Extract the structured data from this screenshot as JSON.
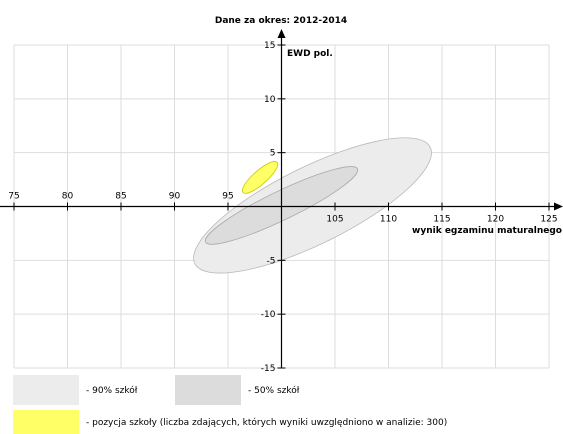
{
  "chart_data": {
    "type": "scatter",
    "title": "Dane za okres: 2012-2014",
    "xlabel": "wynik egzaminu maturalnego",
    "ylabel": "EWD pol.",
    "xlim": [
      75,
      125
    ],
    "ylim": [
      -15,
      15
    ],
    "x_ticks": [
      "75",
      "80",
      "85",
      "90",
      "95",
      "105",
      "110",
      "115",
      "120",
      "125"
    ],
    "y_ticks": [
      "15",
      "10",
      "5",
      "-5",
      "-10",
      "-15"
    ],
    "grid": true,
    "series": [
      {
        "name": "90% szkół",
        "shape": "ellipse",
        "center": [
          102.9,
          0.1
        ],
        "axis_tip_major": [
          113.9,
          5.5
        ],
        "axis_tip_minor": [
          101.5,
          3.4
        ],
        "color": "#ececec"
      },
      {
        "name": "50% szkół",
        "shape": "ellipse",
        "center": [
          100.0,
          0.1
        ],
        "axis_tip_major": [
          107.1,
          3.5
        ],
        "axis_tip_minor": [
          99.4,
          1.3
        ],
        "color": "#dcdcdc"
      },
      {
        "name": "pozycja szkoły",
        "shape": "ellipse",
        "center": [
          98.0,
          2.7
        ],
        "axis_tip_major": [
          99.6,
          4.1
        ],
        "axis_tip_minor": [
          97.6,
          3.2
        ],
        "color": "#ffff66"
      }
    ],
    "legend": [
      {
        "label": "- 90% szkół",
        "color": "#ececec"
      },
      {
        "label": "- 50% szkół",
        "color": "#dcdcdc"
      },
      {
        "label": "- pozycja szkoły (liczba zdających, których wyniki uwzględniono w analizie: 300)",
        "color": "#ffff66"
      }
    ],
    "legend_placement": "bottom"
  }
}
